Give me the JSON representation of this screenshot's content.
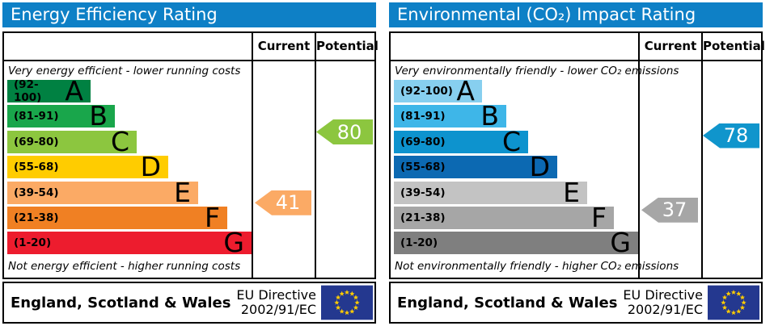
{
  "panels": [
    {
      "title": "Energy Efficiency Rating",
      "columns": {
        "current": "Current",
        "potential": "Potential"
      },
      "top_caption": "Very energy efficient - lower running costs",
      "bottom_caption": "Not energy efficient - higher running costs",
      "bands": [
        {
          "letter": "A",
          "range": "(92-100)",
          "color": "#008142",
          "width_pct": 34
        },
        {
          "letter": "B",
          "range": "(81-91)",
          "color": "#19a64b",
          "width_pct": 44
        },
        {
          "letter": "C",
          "range": "(69-80)",
          "color": "#8cc63f",
          "width_pct": 53
        },
        {
          "letter": "D",
          "range": "(55-68)",
          "color": "#ffcc00",
          "width_pct": 66
        },
        {
          "letter": "E",
          "range": "(39-54)",
          "color": "#fbaa65",
          "width_pct": 78
        },
        {
          "letter": "F",
          "range": "(21-38)",
          "color": "#f08023",
          "width_pct": 90
        },
        {
          "letter": "G",
          "range": "(1-20)",
          "color": "#ed1c2e",
          "width_pct": 100
        }
      ],
      "current": {
        "value": 41,
        "color": "#fbaa65"
      },
      "potential": {
        "value": 80,
        "color": "#8cc63f"
      },
      "footer": {
        "region": "England, Scotland & Wales",
        "directive_line1": "EU Directive",
        "directive_line2": "2002/91/EC",
        "flag_colors": {
          "field": "#24388f",
          "stars": "#ffcc00"
        }
      }
    },
    {
      "title": "Environmental (CO₂) Impact Rating",
      "columns": {
        "current": "Current",
        "potential": "Potential"
      },
      "top_caption": "Very environmentally friendly - lower CO₂ emissions",
      "bottom_caption": "Not environmentally friendly - higher CO₂ emissions",
      "bands": [
        {
          "letter": "A",
          "range": "(92-100)",
          "color": "#87cfef",
          "width_pct": 36
        },
        {
          "letter": "B",
          "range": "(81-91)",
          "color": "#3eb6e8",
          "width_pct": 46
        },
        {
          "letter": "C",
          "range": "(69-80)",
          "color": "#0d93ce",
          "width_pct": 55
        },
        {
          "letter": "D",
          "range": "(55-68)",
          "color": "#0c69b2",
          "width_pct": 67
        },
        {
          "letter": "E",
          "range": "(39-54)",
          "color": "#c3c3c3",
          "width_pct": 79
        },
        {
          "letter": "F",
          "range": "(21-38)",
          "color": "#a6a6a6",
          "width_pct": 90
        },
        {
          "letter": "G",
          "range": "(1-20)",
          "color": "#7f7f7f",
          "width_pct": 100
        }
      ],
      "current": {
        "value": 37,
        "color": "#a6a6a6"
      },
      "potential": {
        "value": 78,
        "color": "#1095cc"
      },
      "footer": {
        "region": "England, Scotland & Wales",
        "directive_line1": "EU Directive",
        "directive_line2": "2002/91/EC",
        "flag_colors": {
          "field": "#24388f",
          "stars": "#ffcc00"
        }
      }
    }
  ],
  "chart_data": [
    {
      "type": "bar",
      "title": "Energy Efficiency Rating",
      "categories": [
        "A (92-100)",
        "B (81-91)",
        "C (69-80)",
        "D (55-68)",
        "E (39-54)",
        "F (21-38)",
        "G (1-20)"
      ],
      "values": [
        34,
        44,
        53,
        66,
        78,
        90,
        100
      ],
      "value_note": "band bar lengths, % of band area (decorative scale)",
      "current_rating": 41,
      "current_band": "E",
      "potential_rating": 80,
      "potential_band": "C",
      "scale_range": [
        1,
        100
      ],
      "top_caption": "Very energy efficient - lower running costs",
      "bottom_caption": "Not energy efficient - higher running costs",
      "region": "England, Scotland & Wales",
      "directive": "EU Directive 2002/91/EC"
    },
    {
      "type": "bar",
      "title": "Environmental (CO₂) Impact Rating",
      "categories": [
        "A (92-100)",
        "B (81-91)",
        "C (69-80)",
        "D (55-68)",
        "E (39-54)",
        "F (21-38)",
        "G (1-20)"
      ],
      "values": [
        36,
        46,
        55,
        67,
        79,
        90,
        100
      ],
      "value_note": "band bar lengths, % of band area (decorative scale)",
      "current_rating": 37,
      "current_band": "F",
      "potential_rating": 78,
      "potential_band": "C",
      "scale_range": [
        1,
        100
      ],
      "top_caption": "Very environmentally friendly - lower CO₂ emissions",
      "bottom_caption": "Not environmentally friendly - higher CO₂ emissions",
      "region": "England, Scotland & Wales",
      "directive": "EU Directive 2002/91/EC"
    }
  ]
}
